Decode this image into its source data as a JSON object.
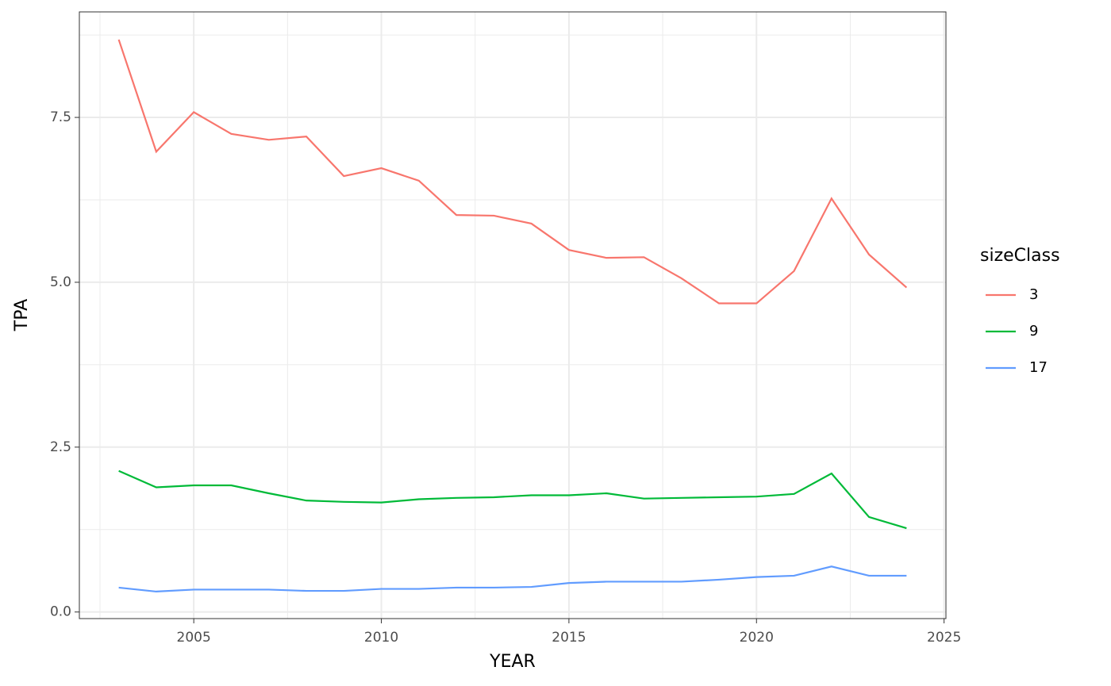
{
  "chart_data": {
    "type": "line",
    "x_label": "YEAR",
    "y_label": "TPA",
    "legend_title": "sizeClass",
    "legend_position": "right",
    "grid": true,
    "x": [
      2003,
      2004,
      2005,
      2006,
      2007,
      2008,
      2009,
      2010,
      2011,
      2012,
      2013,
      2014,
      2015,
      2016,
      2017,
      2018,
      2019,
      2020,
      2021,
      2022,
      2023,
      2024
    ],
    "series": [
      {
        "name": "3",
        "color": "#F8766D",
        "values": [
          8.68,
          6.98,
          7.58,
          7.25,
          7.16,
          7.21,
          6.61,
          6.73,
          6.54,
          6.02,
          6.01,
          5.89,
          5.49,
          5.37,
          5.38,
          5.06,
          4.68,
          4.68,
          5.17,
          6.27,
          5.42,
          4.92
        ]
      },
      {
        "name": "9",
        "color": "#00BA38",
        "values": [
          2.14,
          1.89,
          1.92,
          1.92,
          1.8,
          1.69,
          1.67,
          1.66,
          1.71,
          1.73,
          1.74,
          1.77,
          1.77,
          1.8,
          1.72,
          1.73,
          1.74,
          1.75,
          1.79,
          2.1,
          1.44,
          1.27
        ]
      },
      {
        "name": "17",
        "color": "#619CFF",
        "values": [
          0.37,
          0.31,
          0.34,
          0.34,
          0.34,
          0.32,
          0.32,
          0.35,
          0.35,
          0.37,
          0.37,
          0.38,
          0.44,
          0.46,
          0.46,
          0.46,
          0.49,
          0.53,
          0.55,
          0.69,
          0.55,
          0.55
        ]
      }
    ],
    "xlim": [
      2001.95,
      2025.05
    ],
    "ylim": [
      -0.1,
      9.1
    ],
    "xticks": [
      2005,
      2010,
      2015,
      2020,
      2025
    ],
    "yticks": [
      {
        "value": 0,
        "label": "0.0"
      },
      2.5,
      {
        "value": 5,
        "label": "5.0"
      },
      7.5
    ],
    "xminorticks": [
      2002.5,
      2007.5,
      2012.5,
      2017.5,
      2022.5
    ],
    "yminorticks": [
      1.25,
      3.75,
      6.25,
      8.75
    ]
  }
}
